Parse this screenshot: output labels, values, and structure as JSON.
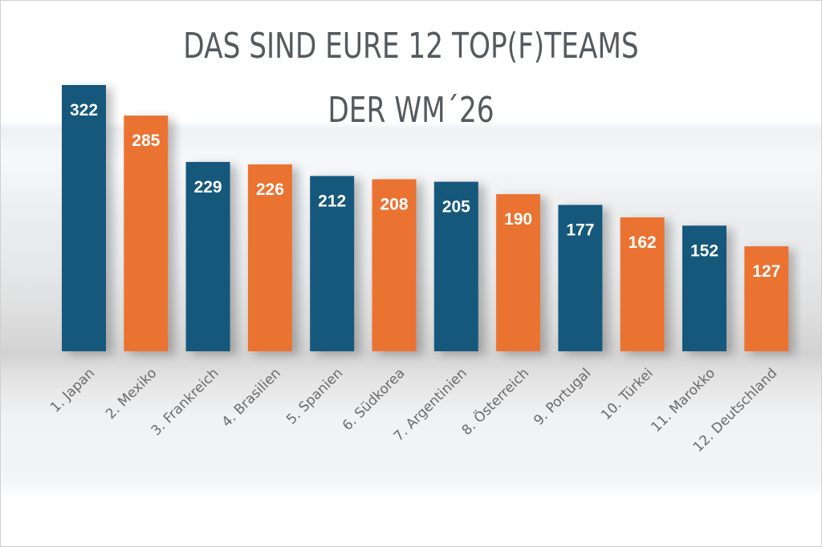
{
  "title_line1": "DAS SIND EURE 12 TOP(F)TEAMS",
  "title_line2": "DER WM´26",
  "colors": {
    "blue": "#15587b",
    "orange": "#ea7331",
    "title": "#555a5e",
    "axis_text": "#6a6a6a"
  },
  "chart_data": {
    "type": "bar",
    "title": "DAS SIND EURE 12 TOP(F)TEAMS DER WM´26",
    "categories": [
      "1. Japan",
      "2. Mexiko",
      "3. Frankreich",
      "4. Brasilien",
      "5. Spanien",
      "6. Südkorea",
      "7. Argentinien",
      "8. Österreich",
      "9. Portugal",
      "10. Türkei",
      "11. Marokko",
      "12. Deutschland"
    ],
    "values": [
      322,
      285,
      229,
      226,
      212,
      208,
      205,
      190,
      177,
      162,
      152,
      127
    ],
    "bar_colors": [
      "blue",
      "orange",
      "blue",
      "orange",
      "blue",
      "orange",
      "blue",
      "orange",
      "blue",
      "orange",
      "blue",
      "orange"
    ],
    "data_labels": true,
    "grid": false,
    "legend": "none",
    "ylim": [
      0,
      322
    ]
  }
}
